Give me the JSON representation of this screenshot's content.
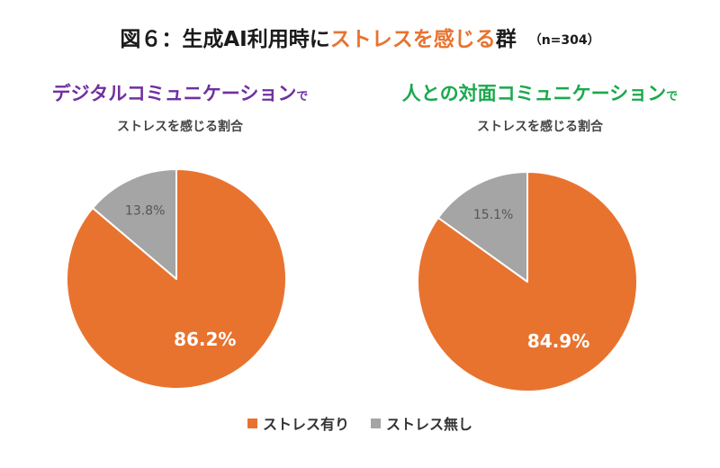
{
  "title": {
    "prefix": "図６：生成AI利用時に",
    "accent": "ストレスを感じる",
    "suffix": "群",
    "n": "（n=304）"
  },
  "chart_data": [
    {
      "type": "pie",
      "title": "デジタルコミュニケーション",
      "title_suffix": "で",
      "subtitle": "ストレスを感じる割合",
      "categories": [
        "ストレス有り",
        "ストレス無し"
      ],
      "values": [
        86.2,
        13.8
      ],
      "value_labels": [
        "86.2%",
        "13.8%"
      ],
      "colors": [
        "#e8732f",
        "#a5a5a5"
      ],
      "label_colors": [
        "#ffffff",
        "#555555"
      ],
      "start": "12 o'clock, clockwise"
    },
    {
      "type": "pie",
      "title": "人との対面コミュニケーション",
      "title_suffix": "で",
      "subtitle": "ストレスを感じる割合",
      "categories": [
        "ストレス有り",
        "ストレス無し"
      ],
      "values": [
        84.9,
        15.1
      ],
      "value_labels": [
        "84.9%",
        "15.1%"
      ],
      "colors": [
        "#e8732f",
        "#a5a5a5"
      ],
      "label_colors": [
        "#ffffff",
        "#555555"
      ],
      "start": "12 o'clock, clockwise"
    }
  ],
  "legend": {
    "placement": "bottom",
    "items": [
      {
        "label": "ストレス有り",
        "color": "#e8732f"
      },
      {
        "label": "ストレス無し",
        "color": "#a5a5a5"
      }
    ]
  }
}
